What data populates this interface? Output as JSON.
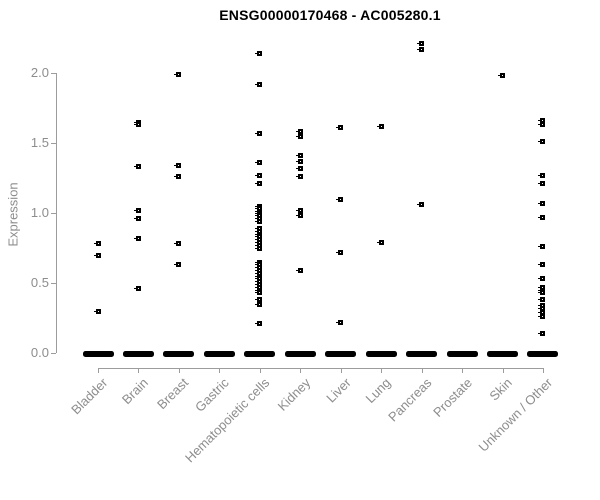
{
  "chart_data": {
    "type": "scatter",
    "title": "ENSG00000170468 - AC005280.1",
    "xlabel": "",
    "ylabel": "Expression",
    "ylim": [
      0,
      2.25
    ],
    "y_ticks": [
      0.0,
      0.5,
      1.0,
      1.5,
      2.0
    ],
    "y_tick_labels": [
      "0.0",
      "0.5",
      "1.0",
      "1.5",
      "2.0"
    ],
    "grid": false,
    "legend": false,
    "marker_style": "small-black-open-square",
    "marker_color": "#000000",
    "axis_color": "#9c9c9c",
    "text_color": "#8d8d8d",
    "categories": [
      "Bladder",
      "Brain",
      "Breast",
      "Gastric",
      "Hematopoietic cells",
      "Kidney",
      "Liver",
      "Lung",
      "Pancreas",
      "Prostate",
      "Skin",
      "Unknown / Other"
    ],
    "series": [
      {
        "name": "Bladder",
        "zero_bar": true,
        "values": [
          0.78,
          0.7,
          0.3
        ]
      },
      {
        "name": "Brain",
        "zero_bar": true,
        "values": [
          1.65,
          1.63,
          1.33,
          1.02,
          0.96,
          0.82,
          0.46
        ]
      },
      {
        "name": "Breast",
        "zero_bar": true,
        "values": [
          1.99,
          1.34,
          1.26,
          0.78,
          0.63
        ]
      },
      {
        "name": "Gastric",
        "zero_bar": true,
        "values": []
      },
      {
        "name": "Hematopoietic cells",
        "zero_bar": true,
        "values": [
          2.14,
          1.92,
          1.57,
          1.36,
          1.27,
          1.21,
          1.05,
          1.03,
          1.01,
          1.0,
          0.98,
          0.96,
          0.94,
          0.89,
          0.87,
          0.85,
          0.83,
          0.81,
          0.79,
          0.77,
          0.75,
          0.65,
          0.63,
          0.61,
          0.59,
          0.57,
          0.55,
          0.53,
          0.51,
          0.49,
          0.47,
          0.45,
          0.43,
          0.38,
          0.35,
          0.21
        ]
      },
      {
        "name": "Kidney",
        "zero_bar": true,
        "values": [
          1.58,
          1.55,
          1.41,
          1.37,
          1.32,
          1.26,
          1.02,
          0.98,
          0.59
        ]
      },
      {
        "name": "Liver",
        "zero_bar": true,
        "values": [
          1.61,
          1.1,
          0.72,
          0.22
        ]
      },
      {
        "name": "Lung",
        "zero_bar": true,
        "values": [
          1.62,
          0.79
        ]
      },
      {
        "name": "Pancreas",
        "zero_bar": true,
        "values": [
          2.21,
          2.17,
          1.06
        ]
      },
      {
        "name": "Prostate",
        "zero_bar": true,
        "values": []
      },
      {
        "name": "Skin",
        "zero_bar": true,
        "values": [
          1.98
        ]
      },
      {
        "name": "Unknown / Other",
        "zero_bar": true,
        "values": [
          1.66,
          1.63,
          1.51,
          1.27,
          1.21,
          1.07,
          0.97,
          0.76,
          0.63,
          0.53,
          0.47,
          0.45,
          0.43,
          0.38,
          0.34,
          0.32,
          0.29,
          0.26,
          0.14
        ]
      }
    ]
  }
}
